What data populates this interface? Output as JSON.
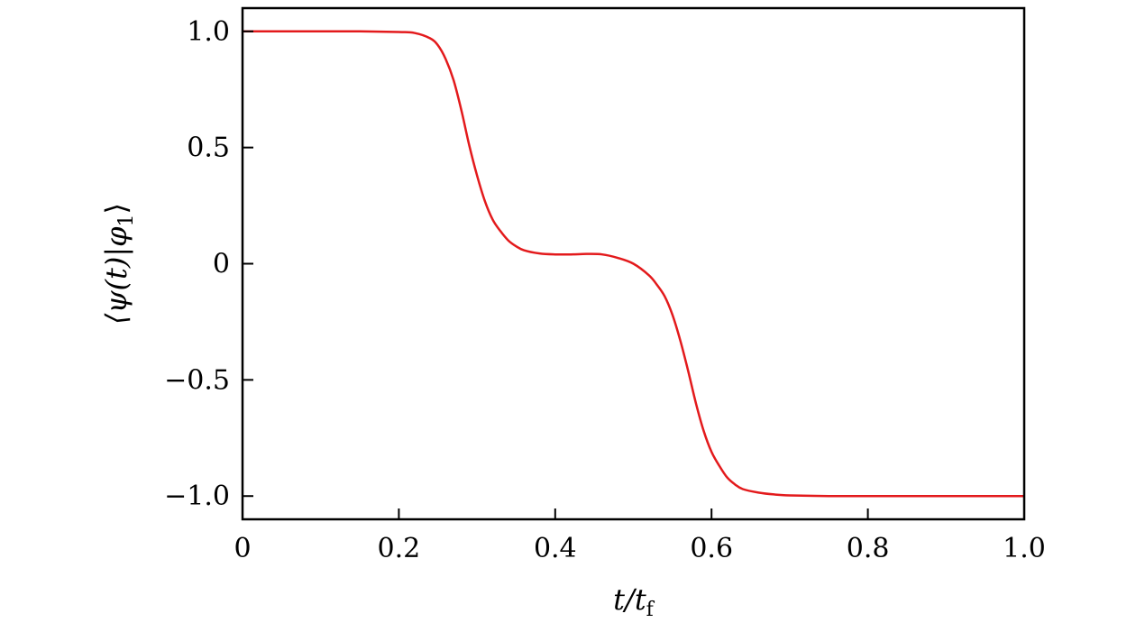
{
  "chart_data": {
    "type": "line",
    "title": "",
    "xlabel": {
      "main": "t/t",
      "sub": "f"
    },
    "ylabel": {
      "main": "⟨ψ(t)|φ",
      "sub": "1",
      "end": "⟩"
    },
    "xlim": [
      0,
      1.0
    ],
    "ylim": [
      -1.1,
      1.1
    ],
    "xticks": [
      {
        "value": 0,
        "label": "0"
      },
      {
        "value": 0.2,
        "label": "0.2"
      },
      {
        "value": 0.4,
        "label": "0.4"
      },
      {
        "value": 0.6,
        "label": "0.6"
      },
      {
        "value": 0.8,
        "label": "0.8"
      },
      {
        "value": 1.0,
        "label": "1.0"
      }
    ],
    "yticks": [
      {
        "value": 1.0,
        "label": "1.0"
      },
      {
        "value": 0.5,
        "label": "0.5"
      },
      {
        "value": 0,
        "label": "0"
      },
      {
        "value": -0.5,
        "label": "−0.5"
      },
      {
        "value": -1.0,
        "label": "−1.0"
      }
    ],
    "grid": false,
    "series": [
      {
        "color": "#e31a1c",
        "x": [
          0,
          0.05,
          0.1,
          0.15,
          0.2,
          0.22,
          0.24,
          0.25,
          0.26,
          0.27,
          0.28,
          0.29,
          0.3,
          0.31,
          0.32,
          0.33,
          0.34,
          0.35,
          0.36,
          0.38,
          0.4,
          0.42,
          0.44,
          0.46,
          0.48,
          0.5,
          0.52,
          0.53,
          0.54,
          0.55,
          0.56,
          0.57,
          0.58,
          0.59,
          0.6,
          0.61,
          0.62,
          0.63,
          0.64,
          0.66,
          0.68,
          0.7,
          0.75,
          0.8,
          0.85,
          0.9,
          0.95,
          1.0
        ],
        "y": [
          1.0,
          1.0,
          1.0,
          1.0,
          0.997,
          0.993,
          0.97,
          0.94,
          0.88,
          0.79,
          0.66,
          0.51,
          0.38,
          0.27,
          0.19,
          0.14,
          0.1,
          0.075,
          0.058,
          0.044,
          0.04,
          0.04,
          0.042,
          0.04,
          0.025,
          0.0,
          -0.05,
          -0.09,
          -0.14,
          -0.22,
          -0.33,
          -0.46,
          -0.6,
          -0.72,
          -0.81,
          -0.87,
          -0.92,
          -0.95,
          -0.97,
          -0.985,
          -0.993,
          -0.997,
          -1.0,
          -1.0,
          -1.0,
          -1.0,
          -1.0,
          -1.0
        ]
      }
    ]
  }
}
